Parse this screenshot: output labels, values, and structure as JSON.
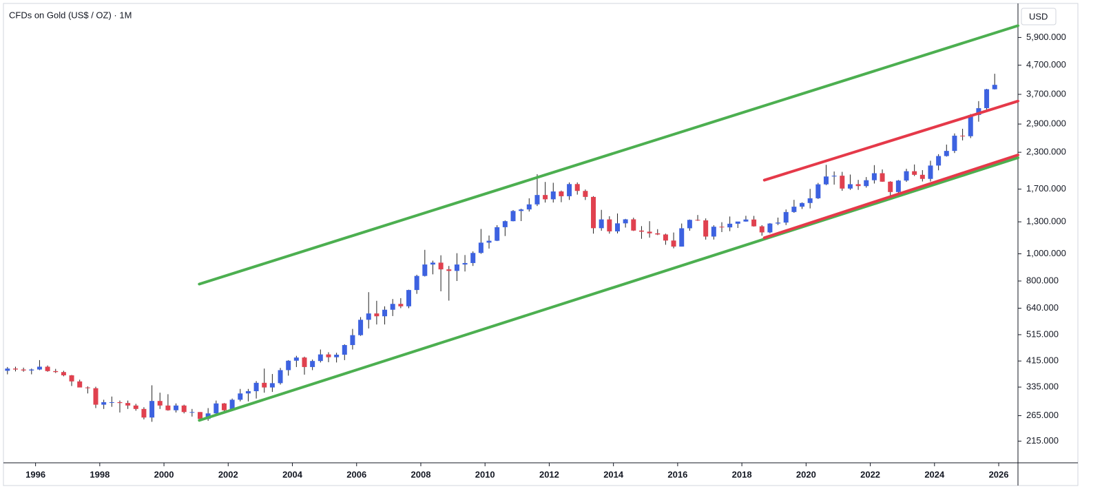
{
  "chart_data": {
    "type": "candlestick",
    "title": "CFDs on Gold (US$ / OZ) · 1M",
    "currency": "USD",
    "log_scale": true,
    "up_color": "#3d62e0",
    "down_color": "#e0414f",
    "xlim": [
      1995.0,
      2026.6
    ],
    "xticks": [
      1996,
      1998,
      2000,
      2002,
      2004,
      2006,
      2008,
      2010,
      2012,
      2014,
      2016,
      2018,
      2020,
      2022,
      2024,
      2026
    ],
    "ylim": [
      180,
      7800
    ],
    "yticks": [
      {
        "value": 215,
        "label": "215.000"
      },
      {
        "value": 265,
        "label": "265.000"
      },
      {
        "value": 335,
        "label": "335.000"
      },
      {
        "value": 415,
        "label": "415.000"
      },
      {
        "value": 515,
        "label": "515.000"
      },
      {
        "value": 640,
        "label": "640.000"
      },
      {
        "value": 800,
        "label": "800.000"
      },
      {
        "value": 1000,
        "label": "1,000.000"
      },
      {
        "value": 1300,
        "label": "1,300.000"
      },
      {
        "value": 1700,
        "label": "1,700.000"
      },
      {
        "value": 2300,
        "label": "2,300.000"
      },
      {
        "value": 2900,
        "label": "2,900.000"
      },
      {
        "value": 3700,
        "label": "3,700.000"
      },
      {
        "value": 4700,
        "label": "4,700.000"
      },
      {
        "value": 5900,
        "label": "5,900.000"
      }
    ],
    "x": [
      1995.125,
      1995.375,
      1995.625,
      1995.875,
      1996.125,
      1996.375,
      1996.625,
      1996.875,
      1997.125,
      1997.375,
      1997.625,
      1997.875,
      1998.125,
      1998.375,
      1998.625,
      1998.875,
      1999.125,
      1999.375,
      1999.625,
      1999.875,
      2000.125,
      2000.375,
      2000.625,
      2000.875,
      2001.125,
      2001.375,
      2001.625,
      2001.875,
      2002.125,
      2002.375,
      2002.625,
      2002.875,
      2003.125,
      2003.375,
      2003.625,
      2003.875,
      2004.125,
      2004.375,
      2004.625,
      2004.875,
      2005.125,
      2005.375,
      2005.625,
      2005.875,
      2006.125,
      2006.375,
      2006.625,
      2006.875,
      2007.125,
      2007.375,
      2007.625,
      2007.875,
      2008.125,
      2008.375,
      2008.625,
      2008.875,
      2009.125,
      2009.375,
      2009.625,
      2009.875,
      2010.125,
      2010.375,
      2010.625,
      2010.875,
      2011.125,
      2011.375,
      2011.625,
      2011.875,
      2012.125,
      2012.375,
      2012.625,
      2012.875,
      2013.125,
      2013.375,
      2013.625,
      2013.875,
      2014.125,
      2014.375,
      2014.625,
      2014.875,
      2015.125,
      2015.375,
      2015.625,
      2015.875,
      2016.125,
      2016.375,
      2016.625,
      2016.875,
      2017.125,
      2017.375,
      2017.625,
      2017.875,
      2018.125,
      2018.375,
      2018.625,
      2018.875,
      2019.125,
      2019.375,
      2019.625,
      2019.875,
      2020.125,
      2020.375,
      2020.625,
      2020.875,
      2021.125,
      2021.375,
      2021.625,
      2021.875,
      2022.125,
      2022.375,
      2022.625,
      2022.875,
      2023.125,
      2023.375,
      2023.625,
      2023.875,
      2024.125,
      2024.375,
      2024.625,
      2024.875,
      2025.125,
      2025.375,
      2025.625,
      2025.875
    ],
    "ohlc": [
      [
        383,
        395,
        372,
        390
      ],
      [
        390,
        396,
        381,
        387
      ],
      [
        387,
        393,
        380,
        384
      ],
      [
        384,
        390,
        372,
        387
      ],
      [
        387,
        418,
        385,
        396
      ],
      [
        396,
        400,
        380,
        382
      ],
      [
        382,
        389,
        376,
        379
      ],
      [
        379,
        383,
        366,
        369
      ],
      [
        369,
        370,
        338,
        351
      ],
      [
        351,
        356,
        335,
        334
      ],
      [
        334,
        337,
        318,
        332
      ],
      [
        332,
        336,
        282,
        290
      ],
      [
        290,
        302,
        280,
        296
      ],
      [
        296,
        310,
        285,
        296
      ],
      [
        296,
        300,
        272,
        294
      ],
      [
        294,
        300,
        280,
        288
      ],
      [
        288,
        292,
        276,
        280
      ],
      [
        280,
        284,
        257,
        261
      ],
      [
        261,
        340,
        252,
        299
      ],
      [
        299,
        320,
        280,
        288
      ],
      [
        288,
        316,
        276,
        277
      ],
      [
        277,
        293,
        272,
        288
      ],
      [
        288,
        290,
        270,
        273
      ],
      [
        273,
        280,
        263,
        273
      ],
      [
        273,
        273,
        255,
        258
      ],
      [
        258,
        282,
        254,
        270
      ],
      [
        270,
        300,
        264,
        293
      ],
      [
        293,
        294,
        272,
        277
      ],
      [
        277,
        305,
        277,
        302
      ],
      [
        302,
        330,
        298,
        318
      ],
      [
        318,
        330,
        298,
        324
      ],
      [
        324,
        352,
        305,
        347
      ],
      [
        347,
        390,
        320,
        334
      ],
      [
        334,
        373,
        322,
        346
      ],
      [
        346,
        392,
        342,
        385
      ],
      [
        385,
        418,
        368,
        416
      ],
      [
        416,
        433,
        395,
        427
      ],
      [
        427,
        430,
        371,
        395
      ],
      [
        395,
        420,
        385,
        415
      ],
      [
        415,
        456,
        410,
        438
      ],
      [
        438,
        446,
        411,
        428
      ],
      [
        428,
        444,
        410,
        437
      ],
      [
        437,
        476,
        418,
        473
      ],
      [
        473,
        540,
        456,
        513
      ],
      [
        513,
        595,
        510,
        582
      ],
      [
        582,
        730,
        542,
        613
      ],
      [
        613,
        680,
        560,
        599
      ],
      [
        599,
        650,
        560,
        632
      ],
      [
        632,
        690,
        600,
        663
      ],
      [
        663,
        695,
        640,
        650
      ],
      [
        650,
        745,
        640,
        743
      ],
      [
        743,
        842,
        720,
        834
      ],
      [
        834,
        1033,
        830,
        916
      ],
      [
        916,
        945,
        845,
        930
      ],
      [
        930,
        988,
        735,
        880
      ],
      [
        880,
        905,
        681,
        869
      ],
      [
        869,
        1005,
        800,
        916
      ],
      [
        916,
        990,
        865,
        927
      ],
      [
        927,
        1020,
        905,
        1007
      ],
      [
        1007,
        1226,
        1000,
        1096
      ],
      [
        1096,
        1162,
        1044,
        1113
      ],
      [
        1113,
        1265,
        1110,
        1244
      ],
      [
        1244,
        1315,
        1157,
        1307
      ],
      [
        1307,
        1432,
        1305,
        1421
      ],
      [
        1421,
        1448,
        1308,
        1439
      ],
      [
        1439,
        1577,
        1415,
        1500
      ],
      [
        1500,
        1921,
        1480,
        1620
      ],
      [
        1620,
        1803,
        1523,
        1564
      ],
      [
        1564,
        1791,
        1523,
        1668
      ],
      [
        1668,
        1680,
        1527,
        1604
      ],
      [
        1604,
        1796,
        1556,
        1772
      ],
      [
        1772,
        1796,
        1625,
        1675
      ],
      [
        1675,
        1695,
        1555,
        1595
      ],
      [
        1595,
        1605,
        1180,
        1234
      ],
      [
        1234,
        1434,
        1208,
        1326
      ],
      [
        1326,
        1361,
        1180,
        1202
      ],
      [
        1202,
        1392,
        1182,
        1284
      ],
      [
        1284,
        1332,
        1240,
        1327
      ],
      [
        1327,
        1345,
        1206,
        1210
      ],
      [
        1210,
        1255,
        1131,
        1199
      ],
      [
        1199,
        1307,
        1142,
        1183
      ],
      [
        1183,
        1224,
        1166,
        1172
      ],
      [
        1172,
        1180,
        1077,
        1115
      ],
      [
        1115,
        1191,
        1046,
        1061
      ],
      [
        1061,
        1282,
        1061,
        1233
      ],
      [
        1233,
        1325,
        1208,
        1321
      ],
      [
        1321,
        1375,
        1310,
        1316
      ],
      [
        1316,
        1337,
        1123,
        1152
      ],
      [
        1152,
        1264,
        1124,
        1249
      ],
      [
        1249,
        1296,
        1195,
        1242
      ],
      [
        1242,
        1358,
        1204,
        1280
      ],
      [
        1280,
        1297,
        1236,
        1303
      ],
      [
        1303,
        1366,
        1302,
        1325
      ],
      [
        1325,
        1365,
        1250,
        1253
      ],
      [
        1253,
        1265,
        1160,
        1192
      ],
      [
        1192,
        1287,
        1183,
        1282
      ],
      [
        1282,
        1346,
        1266,
        1292
      ],
      [
        1292,
        1439,
        1266,
        1409
      ],
      [
        1409,
        1557,
        1400,
        1472
      ],
      [
        1472,
        1525,
        1445,
        1517
      ],
      [
        1517,
        1703,
        1451,
        1577
      ],
      [
        1577,
        1789,
        1568,
        1768
      ],
      [
        1768,
        2075,
        1757,
        1886
      ],
      [
        1886,
        1965,
        1764,
        1898
      ],
      [
        1898,
        1959,
        1677,
        1708
      ],
      [
        1708,
        1916,
        1690,
        1770
      ],
      [
        1770,
        1834,
        1690,
        1743
      ],
      [
        1743,
        1877,
        1721,
        1829
      ],
      [
        1829,
        2070,
        1780,
        1937
      ],
      [
        1937,
        1998,
        1805,
        1807
      ],
      [
        1807,
        1814,
        1615,
        1660
      ],
      [
        1660,
        1833,
        1617,
        1824
      ],
      [
        1824,
        2009,
        1804,
        1969
      ],
      [
        1969,
        2081,
        1893,
        1912
      ],
      [
        1912,
        1987,
        1810,
        1849
      ],
      [
        1849,
        2146,
        1810,
        2063
      ],
      [
        2063,
        2265,
        1984,
        2230
      ],
      [
        2230,
        2450,
        2220,
        2326
      ],
      [
        2326,
        2685,
        2286,
        2635
      ],
      [
        2635,
        2790,
        2536,
        2624
      ],
      [
        2624,
        3148,
        2584,
        3124
      ],
      [
        3124,
        3500,
        2957,
        3303
      ],
      [
        3303,
        3871,
        3268,
        3858
      ],
      [
        3858,
        4381,
        3850,
        4000
      ]
    ],
    "trendlines": [
      {
        "color": "#4caf50",
        "x": [
          2001.1,
          2026.6
        ],
        "y": [
          780,
          6500
        ]
      },
      {
        "color": "#4caf50",
        "x": [
          2001.1,
          2026.6
        ],
        "y": [
          255,
          2200
        ]
      },
      {
        "color": "#e53949",
        "x": [
          2018.7,
          2026.6
        ],
        "y": [
          1830,
          3500
        ]
      },
      {
        "color": "#e53949",
        "x": [
          2018.7,
          2026.6
        ],
        "y": [
          1140,
          2250
        ]
      }
    ]
  }
}
